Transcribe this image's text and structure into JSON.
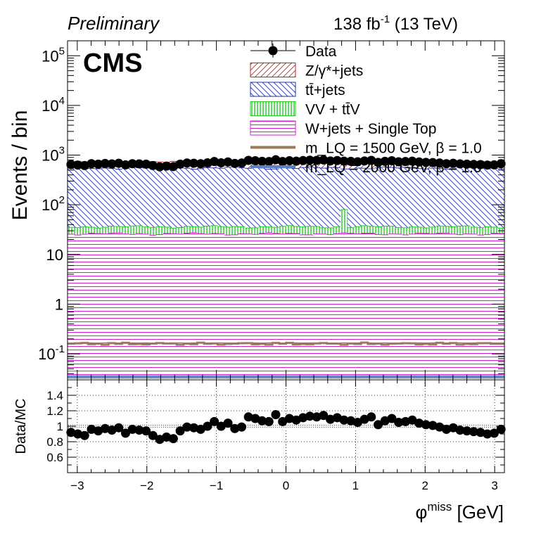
{
  "header": {
    "preliminary": "Preliminary",
    "lumi": "138 fb",
    "lumi_exp": "-1",
    "energy": " (13 TeV)",
    "cms": "CMS"
  },
  "chart_data": [
    {
      "type": "histogram-stack",
      "ylabel": "Events / bin",
      "log_y": true,
      "xlim": [
        -3.14,
        3.14
      ],
      "ylim": [
        0.03,
        200000
      ],
      "yticks": [
        {
          "v": 100000,
          "base": "10",
          "exp": "5"
        },
        {
          "v": 10000,
          "base": "10",
          "exp": "4"
        },
        {
          "v": 1000,
          "base": "10",
          "exp": "3"
        },
        {
          "v": 100,
          "base": "10",
          "exp": "2"
        },
        {
          "v": 10,
          "base": "10",
          "exp": ""
        },
        {
          "v": 1,
          "base": "1",
          "exp": ""
        },
        {
          "v": 0.1,
          "base": "10",
          "exp": "-1"
        }
      ],
      "legend": [
        {
          "label": "Data",
          "style": "marker",
          "color": "#000000"
        },
        {
          "label": "Z/γ*+jets",
          "style": "hatch-diag",
          "color": "#cc2222"
        },
        {
          "label": "tt̄+jets",
          "style": "hatch-anti",
          "color": "#1f2fa8"
        },
        {
          "label": "VV + tt̄V",
          "style": "hatch-vert",
          "color": "#22cc22"
        },
        {
          "label": "W+jets + Single Top",
          "style": "hatch-horiz",
          "color": "#cc22cc"
        },
        {
          "label": "m_LQ = 1500 GeV, β = 1.0",
          "style": "line",
          "color": "#9a7a5e"
        },
        {
          "label": "m_LQ = 2000 GeV, β = 1.0",
          "style": "line",
          "color": "#5b7fc9"
        }
      ],
      "legend_placement": "top-right",
      "bins": 64,
      "stack_cumulative_levels": {
        "W+jets + Single Top": 26,
        "VV + tt̄V": 36,
        "tt̄+jets": 550,
        "Z/γ*+jets": 720
      },
      "vv_spike": {
        "x": 0.85,
        "value": 80
      },
      "data_level": 700,
      "signal_levels": {
        "m_LQ = 1500 GeV": 0.16,
        "m_LQ = 2000 GeV": 0.035
      }
    },
    {
      "type": "scatter",
      "ylabel": "Data/MC",
      "xlabel": "φ",
      "xlabel_sup": "miss",
      "xlabel_unit": " [GeV]",
      "ylim": [
        0.4,
        1.6
      ],
      "yticks": [
        "0.6",
        "0.8",
        "1",
        "1.2",
        "1.4"
      ],
      "xticks": [
        "−3",
        "−2",
        "−1",
        "0",
        "1",
        "2",
        "3"
      ],
      "grid": true,
      "ratio": [
        0.92,
        0.9,
        0.88,
        0.96,
        0.94,
        0.97,
        0.95,
        0.98,
        0.91,
        0.96,
        0.95,
        0.94,
        0.88,
        0.83,
        0.86,
        0.84,
        0.94,
        0.99,
        0.98,
        0.96,
        1.0,
        1.06,
        1.0,
        1.04,
        0.97,
        0.99,
        1.12,
        1.1,
        1.07,
        1.06,
        1.15,
        1.06,
        1.1,
        1.08,
        1.11,
        1.13,
        1.12,
        1.14,
        1.09,
        1.11,
        1.08,
        1.07,
        1.05,
        1.09,
        1.12,
        1.02,
        1.07,
        1.1,
        1.05,
        1.06,
        1.08,
        1.04,
        1.02,
        1.01,
        0.99,
        0.96,
        0.98,
        0.95,
        0.94,
        0.93,
        0.92,
        0.9,
        0.91,
        0.96
      ]
    }
  ]
}
